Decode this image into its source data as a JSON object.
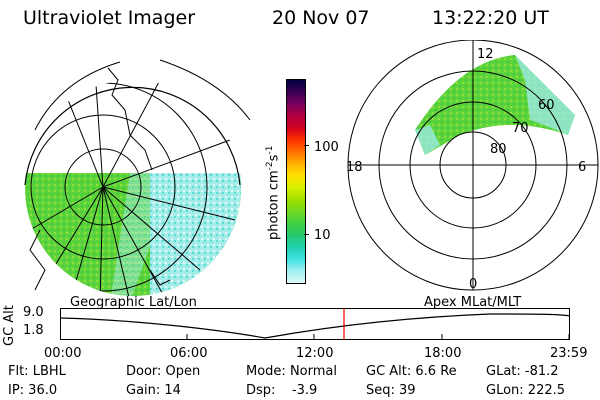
{
  "header": {
    "instrument": "Ultraviolet Imager",
    "date": "20 Nov 07",
    "time": "13:22:20 UT"
  },
  "colorbar": {
    "unit_label": "photon cm",
    "unit_sup1": "-2",
    "unit_mid": "s",
    "unit_sup2": "-1",
    "ticks": [
      "100",
      "10"
    ],
    "colors": [
      "#000040",
      "#3a0050",
      "#7a0060",
      "#b00040",
      "#d00020",
      "#ff3000",
      "#ff7000",
      "#ffb000",
      "#ffe000",
      "#d8f000",
      "#a0e000",
      "#70d820",
      "#40d040",
      "#28c870",
      "#20d0b0",
      "#40e0e0",
      "#a0f0f0",
      "#e0f8f8"
    ]
  },
  "panels": {
    "left_label": "Geographic Lat/Lon",
    "right_label": "Apex MLat/MLT",
    "mlt_labels": {
      "top": "12",
      "left": "18",
      "right": "6",
      "bottom": "0"
    },
    "mlat_labels": [
      "60",
      "70",
      "80"
    ]
  },
  "altitude_plot": {
    "axis_label": "GC Alt",
    "y_ticks": [
      "9.0",
      "1.8"
    ],
    "x_ticks": [
      "00:00",
      "06:00",
      "12:00",
      "18:00",
      "23:59"
    ],
    "current_marker_color": "#e00000"
  },
  "info": {
    "flt": "Flt: LBHL",
    "ip": "IP: 36.0",
    "door": "Door: Open",
    "gain": "Gain: 14",
    "mode_label": "Mode:",
    "mode_value": "Normal",
    "dsp_label": "Dsp:",
    "dsp_value": "-3.9",
    "gc_alt": "GC Alt: 6.6 Re",
    "seq": "Seq: 39",
    "glat": "GLat: -81.2",
    "glon": "GLon: 222.5"
  },
  "colors": {
    "aurora_green": "#5ed43a",
    "aurora_cyan": "#9ce8e4"
  }
}
